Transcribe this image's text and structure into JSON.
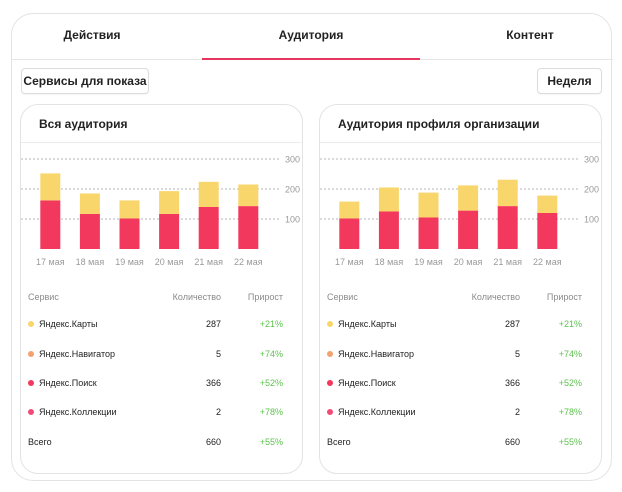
{
  "colors": {
    "accent": "#e8355e",
    "bar_bottom": "#f2385c",
    "bar_top": "#f8d66b",
    "growth": "#5cc34c",
    "axis_label": "#9a9a9a",
    "gridline": "#b5b5b5"
  },
  "tabs": [
    {
      "label": "Действия"
    },
    {
      "label": "Аудитория"
    },
    {
      "label": "Контент"
    }
  ],
  "active_tab": "Аудитория",
  "toolbar": {
    "services_label": "Сервисы для показа",
    "period_label": "Неделя"
  },
  "panels": [
    {
      "title": "Вся аудитория",
      "table": {
        "headers": {
          "service": "Сервис",
          "quantity": "Количество",
          "growth": "Прирост"
        },
        "rows": [
          {
            "name": "Яндекс.Карты",
            "quantity": "287",
            "growth": "+21%",
            "color": "#f8d66b"
          },
          {
            "name": "Яндекс.Навигатор",
            "quantity": "5",
            "growth": "+74%",
            "color": "#f5a070"
          },
          {
            "name": "Яндекс.Поиск",
            "quantity": "366",
            "growth": "+52%",
            "color": "#f2385c"
          },
          {
            "name": "Яндекс.Коллекции",
            "quantity": "2",
            "growth": "+78%",
            "color": "#f24a78"
          }
        ],
        "total": {
          "name": "Всего",
          "quantity": "660",
          "growth": "+55%"
        }
      }
    },
    {
      "title": "Аудитория профиля организации",
      "table": {
        "headers": {
          "service": "Сервис",
          "quantity": "Количество",
          "growth": "Прирост"
        },
        "rows": [
          {
            "name": "Яндекс.Карты",
            "quantity": "287",
            "growth": "+21%",
            "color": "#f8d66b"
          },
          {
            "name": "Яндекс.Навигатор",
            "quantity": "5",
            "growth": "+74%",
            "color": "#f5a070"
          },
          {
            "name": "Яндекс.Поиск",
            "quantity": "366",
            "growth": "+52%",
            "color": "#f2385c"
          },
          {
            "name": "Яндекс.Коллекции",
            "quantity": "2",
            "growth": "+78%",
            "color": "#f24a78"
          }
        ],
        "total": {
          "name": "Всего",
          "quantity": "660",
          "growth": "+55%"
        }
      }
    }
  ],
  "chart_data": [
    {
      "type": "bar",
      "stacked": true,
      "title": "Вся аудитория",
      "categories": [
        "17 мая",
        "18 мая",
        "19 мая",
        "20 мая",
        "21 мая",
        "22 мая"
      ],
      "series": [
        {
          "name": "bottom",
          "values": [
            162,
            117,
            102,
            117,
            140,
            143
          ]
        },
        {
          "name": "top",
          "values": [
            90,
            68,
            60,
            76,
            84,
            72
          ]
        }
      ],
      "yticks": [
        100,
        200,
        300
      ],
      "ylim": [
        0,
        300
      ],
      "grid": true
    },
    {
      "type": "bar",
      "stacked": true,
      "title": "Аудитория профиля организации",
      "categories": [
        "17 мая",
        "18 мая",
        "19 мая",
        "20 мая",
        "21 мая",
        "22 мая"
      ],
      "series": [
        {
          "name": "bottom",
          "values": [
            102,
            125,
            105,
            128,
            143,
            120
          ]
        },
        {
          "name": "top",
          "values": [
            56,
            80,
            83,
            84,
            88,
            58
          ]
        }
      ],
      "yticks": [
        100,
        200,
        300
      ],
      "ylim": [
        0,
        300
      ],
      "grid": true
    }
  ]
}
